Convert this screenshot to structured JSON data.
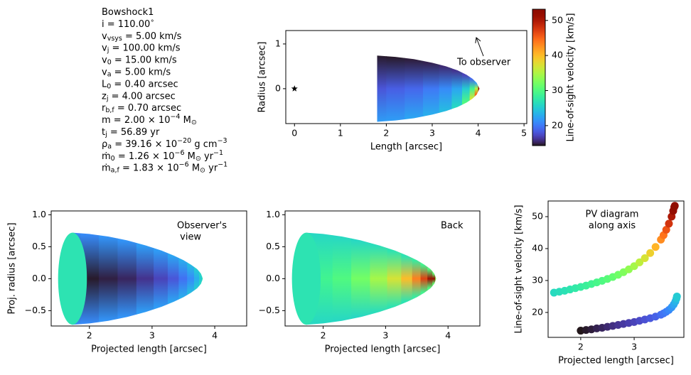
{
  "parameters": [
    [
      "Bowshock1"
    ],
    [
      "i = 110.00",
      {
        "sup": "∘"
      }
    ],
    [
      "v",
      {
        "sub": "vsys"
      },
      " = 5.00 km/s"
    ],
    [
      "v",
      {
        "sub": "j"
      },
      " = 100.00 km/s"
    ],
    [
      "v",
      {
        "sub": "0"
      },
      " = 15.00 km/s"
    ],
    [
      "v",
      {
        "sub": "a"
      },
      " = 5.00 km/s"
    ],
    [
      "L",
      {
        "sub": "0"
      },
      " = 0.40 arcsec"
    ],
    [
      "z",
      {
        "sub": "j"
      },
      " = 4.00 arcsec"
    ],
    [
      "r",
      {
        "sub": "b,f"
      },
      " = 0.70 arcsec"
    ],
    [
      "m = 2.00 × 10",
      {
        "sup": "−4"
      },
      " M",
      {
        "sub": "⊙"
      }
    ],
    [
      "t",
      {
        "sub": "j"
      },
      " = 56.89 yr"
    ],
    [
      "ρ",
      {
        "sub": "a"
      },
      " = 39.16 × 10",
      {
        "sup": "−20"
      },
      " g cm",
      {
        "sup": "−3"
      }
    ],
    [
      "ṁ",
      {
        "sub": "0"
      },
      " = 1.26 × 10",
      {
        "sup": "−6"
      },
      " M",
      {
        "sub": "⊙"
      },
      " yr",
      {
        "sup": "−1"
      }
    ],
    [
      "ṁ",
      {
        "sub": "a,f"
      },
      " = 1.83 × 10",
      {
        "sup": "−6"
      },
      " M",
      {
        "sub": "⊙"
      },
      " yr",
      {
        "sup": "−1"
      }
    ]
  ],
  "chart_data": [
    {
      "type": "bowshock",
      "xlabel": "Length [arcsec]",
      "ylabel": "Radius [arcsec]",
      "xlim": [
        -0.19,
        5.06
      ],
      "ylim": [
        -0.78,
        1.3
      ],
      "xticks": [
        0,
        1,
        2,
        3,
        4,
        5
      ],
      "yticks": [
        0,
        1
      ],
      "colormap": "turbo",
      "clim": [
        14.3,
        53.2
      ],
      "z": [
        1.8,
        2.2,
        2.6,
        3.0,
        3.3,
        3.55,
        3.75,
        3.88,
        3.97,
        4.03
      ],
      "r": [
        0.74,
        0.71,
        0.66,
        0.58,
        0.5,
        0.41,
        0.31,
        0.22,
        0.13,
        0
      ],
      "v_upper": [
        14.5,
        14.5,
        14.7,
        15,
        15.5,
        16,
        17,
        19,
        22,
        30
      ],
      "v_center": [
        18,
        18.5,
        19,
        20,
        21,
        22.5,
        25,
        29,
        35,
        45
      ],
      "v_lower": [
        22,
        22,
        22.5,
        23,
        24,
        26,
        30,
        37,
        45,
        52
      ],
      "source": [
        0,
        0
      ],
      "annotation": [
        "To observer"
      ],
      "colorbar": {
        "label": "Line-of-sight velocity [km/s]",
        "ticks": [
          20,
          30,
          40,
          50
        ]
      }
    },
    {
      "type": "bowshock",
      "xlabel": "Projected length [arcsec]",
      "ylabel": "Proj. radius [arcsec]",
      "xlim": [
        1.39,
        4.51
      ],
      "ylim": [
        -0.74,
        1.06
      ],
      "xticks": [
        2,
        3,
        4
      ],
      "yticks": [
        {
          "value": -0.5,
          "label": "−0.5"
        },
        {
          "value": 0,
          "label": "0.0"
        },
        {
          "value": 0.5,
          "label": "0.5"
        },
        {
          "value": 1,
          "label": "1.0"
        }
      ],
      "colormap": "turbo",
      "clim": [
        14.3,
        53.2
      ],
      "z": [
        1.73,
        2.0,
        2.3,
        2.6,
        2.9,
        3.15,
        3.35,
        3.5,
        3.62,
        3.72,
        3.78,
        3.81
      ],
      "r": [
        0.72,
        0.7,
        0.66,
        0.6,
        0.52,
        0.44,
        0.36,
        0.29,
        0.22,
        0.15,
        0.08,
        0
      ],
      "v_upper": [
        21,
        21,
        21.5,
        21.5,
        22,
        22,
        22.5,
        23,
        24,
        25,
        26,
        27
      ],
      "v_center": [
        14.5,
        14.5,
        14.8,
        15.2,
        16,
        17,
        18,
        19.5,
        21,
        23,
        25,
        27
      ],
      "v_lower": [
        21,
        21,
        21.5,
        21.5,
        22,
        22,
        22.5,
        23,
        24,
        25,
        26,
        27
      ],
      "rim": {
        "z": 1.73,
        "rx": 0.23,
        "ry": 0.72,
        "value": 27
      },
      "annotation": [
        "Observer's",
        " view"
      ]
    },
    {
      "type": "bowshock",
      "xlabel": "Projected length [arcsec]",
      "xlim": [
        1.39,
        4.51
      ],
      "ylim": [
        -0.74,
        1.06
      ],
      "xticks": [
        2,
        3,
        4
      ],
      "yticks": [
        {
          "value": -0.5,
          "label": "−0.5"
        },
        {
          "value": 0,
          "label": "0.0"
        },
        {
          "value": 0.5,
          "label": "0.5"
        },
        {
          "value": 1,
          "label": "1.0"
        }
      ],
      "colormap": "turbo",
      "clim": [
        14.3,
        53.2
      ],
      "z": [
        1.73,
        2.0,
        2.3,
        2.6,
        2.9,
        3.15,
        3.35,
        3.5,
        3.62,
        3.72,
        3.78,
        3.81
      ],
      "r": [
        0.72,
        0.7,
        0.66,
        0.6,
        0.52,
        0.44,
        0.36,
        0.29,
        0.22,
        0.15,
        0.08,
        0
      ],
      "v_upper": [
        26,
        26,
        26,
        26,
        26.5,
        27,
        27,
        28,
        29,
        30,
        31,
        33
      ],
      "v_center": [
        28,
        29,
        30,
        32,
        34.5,
        37,
        40,
        43.5,
        47,
        51,
        53,
        45
      ],
      "v_lower": [
        26,
        26,
        26,
        26,
        26.5,
        27,
        27,
        28,
        29,
        30,
        31,
        33
      ],
      "rim": {
        "z": 1.73,
        "rx": 0.23,
        "ry": 0.72,
        "value": 27
      },
      "annotation": [
        "Back"
      ]
    },
    {
      "type": "scatter",
      "xlabel": "Projected length [arcsec]",
      "ylabel": "Line-of-sight velocity [km/s]",
      "xlim": [
        1.39,
        3.93
      ],
      "ylim": [
        12.2,
        54.9
      ],
      "xticks": [
        2,
        3
      ],
      "yticks": [
        20,
        30,
        40,
        50
      ],
      "colormap": "turbo",
      "clim": [
        14.3,
        53.2
      ],
      "annotation": [
        "PV diagram",
        "along axis"
      ],
      "series": [
        {
          "x": [
            1.5,
            1.6,
            1.7,
            1.8,
            1.9,
            2.0,
            2.1,
            2.2,
            2.3,
            2.4,
            2.5,
            2.6,
            2.7,
            2.8,
            2.9,
            3.0,
            3.1,
            3.2,
            3.3,
            3.4,
            3.5,
            3.55,
            3.6,
            3.65,
            3.7,
            3.73,
            3.75,
            3.76
          ],
          "values": [
            26.2,
            26.5,
            26.8,
            27.2,
            27.6,
            28.0,
            28.4,
            28.9,
            29.4,
            29.9,
            30.5,
            31.1,
            31.8,
            32.6,
            33.5,
            34.5,
            35.7,
            37.0,
            38.6,
            40.5,
            42.8,
            44.2,
            45.9,
            47.8,
            50.0,
            51.8,
            53.0,
            53.4
          ]
        },
        {
          "x": [
            2.0,
            2.1,
            2.2,
            2.3,
            2.4,
            2.5,
            2.6,
            2.7,
            2.8,
            2.9,
            3.0,
            3.1,
            3.2,
            3.3,
            3.4,
            3.5,
            3.55,
            3.6,
            3.65,
            3.7,
            3.74,
            3.77,
            3.79,
            3.8
          ],
          "values": [
            14.3,
            14.5,
            14.7,
            15.0,
            15.2,
            15.5,
            15.8,
            16.1,
            16.4,
            16.7,
            17.0,
            17.4,
            17.8,
            18.2,
            18.7,
            19.3,
            19.7,
            20.2,
            20.8,
            21.6,
            22.5,
            23.4,
            24.3,
            25.0
          ]
        }
      ]
    }
  ]
}
